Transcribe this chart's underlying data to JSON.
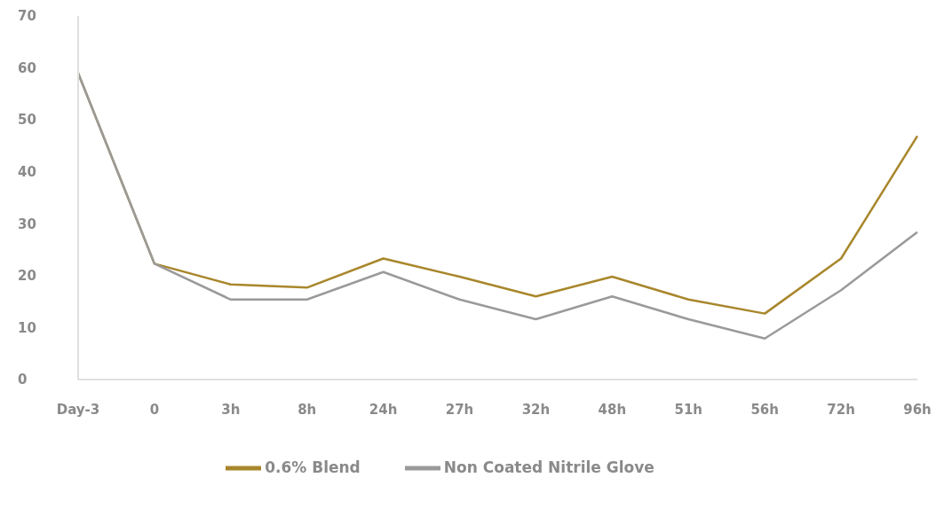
{
  "chart_data": {
    "type": "line",
    "categories": [
      "Day-3",
      "0",
      "3h",
      "8h",
      "24h",
      "27h",
      "32h",
      "48h",
      "51h",
      "56h",
      "72h",
      "96h"
    ],
    "series": [
      {
        "name": "0.6% Blend",
        "color": "#a8862b",
        "values": [
          59,
          22.3,
          18.3,
          17.7,
          23.3,
          19.8,
          16,
          19.8,
          15.4,
          12.7,
          23.3,
          46.9
        ]
      },
      {
        "name": "Non Coated Nitrile Glove",
        "color": "#9a9a9a",
        "values": [
          59,
          22.3,
          15.4,
          15.4,
          20.7,
          15.4,
          11.6,
          16,
          11.6,
          7.9,
          17.2,
          28.4
        ]
      }
    ],
    "ylim": [
      0,
      70
    ],
    "yticks": [
      0,
      10,
      20,
      30,
      40,
      50,
      60,
      70
    ],
    "grid": false,
    "legend": "bottom",
    "marker": "none",
    "line_style": "solid"
  }
}
